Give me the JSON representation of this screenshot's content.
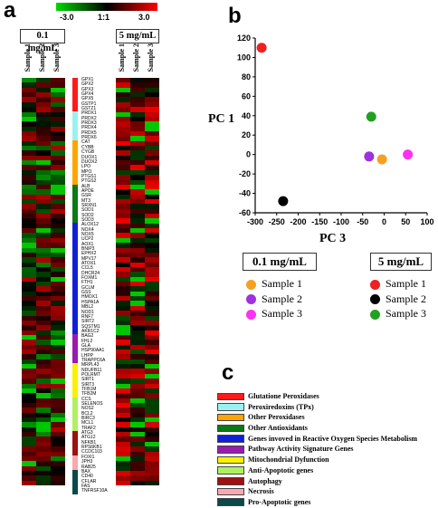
{
  "panel_labels": {
    "a": "a",
    "b": "b",
    "c": "c"
  },
  "color_scale": {
    "min_label": "-3.0",
    "mid_label": "1:1",
    "max_label": "3.0",
    "low_color": "#00d800",
    "mid_color": "#000000",
    "high_color": "#ff0000"
  },
  "heatmap": {
    "left_group": "0.1 mg/mL",
    "right_group": "5 mg/mL",
    "left_samples": [
      "Sample 1",
      "Sample 2",
      "Sample 3"
    ],
    "right_samples": [
      "Sample 1",
      "Sample 2",
      "Sample 3"
    ]
  },
  "genes": [
    {
      "name": "GPX1",
      "cat": 0
    },
    {
      "name": "GPX2",
      "cat": 0
    },
    {
      "name": "GPX3",
      "cat": 0
    },
    {
      "name": "GPX4",
      "cat": 0
    },
    {
      "name": "GPX5",
      "cat": 0
    },
    {
      "name": "GSTP1",
      "cat": 0
    },
    {
      "name": "GSTZ1",
      "cat": 0
    },
    {
      "name": "PRDX1",
      "cat": 1
    },
    {
      "name": "PRDX2",
      "cat": 1
    },
    {
      "name": "PRDX3",
      "cat": 1
    },
    {
      "name": "PRDX4",
      "cat": 1
    },
    {
      "name": "PRDX5",
      "cat": 1
    },
    {
      "name": "PRDX6",
      "cat": 1
    },
    {
      "name": "CAT",
      "cat": 2
    },
    {
      "name": "CYBB",
      "cat": 2
    },
    {
      "name": "CYGB",
      "cat": 2
    },
    {
      "name": "DUOX1",
      "cat": 2
    },
    {
      "name": "DUOX2",
      "cat": 2
    },
    {
      "name": "LPO",
      "cat": 2
    },
    {
      "name": "MPO",
      "cat": 2
    },
    {
      "name": "PTGS1",
      "cat": 2
    },
    {
      "name": "PTGS2",
      "cat": 2
    },
    {
      "name": "ALB",
      "cat": 3
    },
    {
      "name": "APOE",
      "cat": 3
    },
    {
      "name": "GSR",
      "cat": 3
    },
    {
      "name": "MT3",
      "cat": 3
    },
    {
      "name": "SRXN1",
      "cat": 3
    },
    {
      "name": "SOD1",
      "cat": 3
    },
    {
      "name": "SOD2",
      "cat": 3
    },
    {
      "name": "SOD3",
      "cat": 3
    },
    {
      "name": "ALOX12",
      "cat": 4
    },
    {
      "name": "NOX4",
      "cat": 4
    },
    {
      "name": "NOX5",
      "cat": 4
    },
    {
      "name": "UCP2",
      "cat": 4
    },
    {
      "name": "AOX1",
      "cat": 4
    },
    {
      "name": "BNIP3",
      "cat": 4
    },
    {
      "name": "EPHX2",
      "cat": 4
    },
    {
      "name": "MPV17",
      "cat": 4
    },
    {
      "name": "ATOX1",
      "cat": 4
    },
    {
      "name": "CCL5",
      "cat": 4
    },
    {
      "name": "DHCR24",
      "cat": 4
    },
    {
      "name": "FOXM1",
      "cat": 4
    },
    {
      "name": "FTH1",
      "cat": 4
    },
    {
      "name": "GCLM",
      "cat": 4
    },
    {
      "name": "GSS",
      "cat": 4
    },
    {
      "name": "HMOX1",
      "cat": 4
    },
    {
      "name": "HSPA1A",
      "cat": 4
    },
    {
      "name": "MBL2",
      "cat": 4
    },
    {
      "name": "NOD1",
      "cat": 4
    },
    {
      "name": "RNF7",
      "cat": 4
    },
    {
      "name": "SIRT2",
      "cat": 4
    },
    {
      "name": "SQSTM1",
      "cat": 4
    },
    {
      "name": "AKR1C2",
      "cat": 4
    },
    {
      "name": "BAG2",
      "cat": 5
    },
    {
      "name": "FHL2",
      "cat": 5
    },
    {
      "name": "GLA",
      "cat": 5
    },
    {
      "name": "HSP90AA1",
      "cat": 5
    },
    {
      "name": "LHPP",
      "cat": 5
    },
    {
      "name": "TRAPPC6A",
      "cat": 5
    },
    {
      "name": "MRPL43",
      "cat": 6
    },
    {
      "name": "NDUFB11",
      "cat": 6
    },
    {
      "name": "POLRMT",
      "cat": 6
    },
    {
      "name": "SIRT1",
      "cat": 6
    },
    {
      "name": "SIRT3",
      "cat": 6
    },
    {
      "name": "TFB1M",
      "cat": 6
    },
    {
      "name": "TFB2M",
      "cat": 6
    },
    {
      "name": "CCS",
      "cat": 7
    },
    {
      "name": "SELENOS",
      "cat": 7
    },
    {
      "name": "NOS2",
      "cat": 7
    },
    {
      "name": "BCL2",
      "cat": 7
    },
    {
      "name": "BIRC3",
      "cat": 7
    },
    {
      "name": "MCL1",
      "cat": 7
    },
    {
      "name": "TRAF2",
      "cat": 7
    },
    {
      "name": "ATG3",
      "cat": 8
    },
    {
      "name": "ATG12",
      "cat": 8
    },
    {
      "name": "NFKB1",
      "cat": 8
    },
    {
      "name": "RPS6KB1",
      "cat": 8
    },
    {
      "name": "CCDC103",
      "cat": 8
    },
    {
      "name": "FOXI1",
      "cat": 9
    },
    {
      "name": "JPH3",
      "cat": 9
    },
    {
      "name": "RAB25",
      "cat": 9
    },
    {
      "name": "BAX",
      "cat": 10
    },
    {
      "name": "CD40",
      "cat": 10
    },
    {
      "name": "CFLAR",
      "cat": 10
    },
    {
      "name": "FAS",
      "cat": 10
    },
    {
      "name": "TNFRSF10A",
      "cat": 10
    }
  ],
  "categories": [
    {
      "label": "Glutatione Peroxidases",
      "color": "#ff1a1a"
    },
    {
      "label": "Peroxiredoxins (TPx)",
      "color": "#99f2f0"
    },
    {
      "label": "Other Peroxidases",
      "color": "#ffa500"
    },
    {
      "label": "Other Antioxidants",
      "color": "#0c7a14"
    },
    {
      "label": "Genes invoved in Reactive Oxygen Species Metabolism",
      "color": "#1020d8"
    },
    {
      "label": "Pathway Activity Signature Genes",
      "color": "#9a1ab0"
    },
    {
      "label": "Mitochondrial Dyfunction",
      "color": "#f8f200"
    },
    {
      "label": "Anti-Apoptotic genes",
      "color": "#b0f060"
    },
    {
      "label": "Autophagy",
      "color": "#a01010"
    },
    {
      "label": "Necrosis",
      "color": "#f8a8b0"
    },
    {
      "label": "Pro-Apoptotic genes",
      "color": "#0a4a48"
    }
  ],
  "chart_data": {
    "type": "scatter",
    "xlabel": "PC 3",
    "ylabel": "PC 1",
    "xlim": [
      -300,
      100
    ],
    "ylim": [
      -60,
      120
    ],
    "xticks": [
      -300,
      -250,
      -200,
      -150,
      -100,
      -50,
      0,
      50,
      100
    ],
    "yticks": [
      -60,
      -40,
      -20,
      0,
      20,
      40,
      60,
      80,
      100,
      120
    ],
    "grid": false,
    "series": [
      {
        "name": "Sample 1",
        "group": "0.1 mg/mL",
        "color": "#f5a020",
        "x": -5,
        "y": -5
      },
      {
        "name": "Sample 2",
        "group": "0.1 mg/mL",
        "color": "#a030e0",
        "x": -35,
        "y": -2
      },
      {
        "name": "Sample 3",
        "group": "0.1 mg/mL",
        "color": "#ff30f0",
        "x": 55,
        "y": 0
      },
      {
        "name": "Sample 1",
        "group": "5 mg/mL",
        "color": "#ee2020",
        "x": -285,
        "y": 110
      },
      {
        "name": "Sample 2",
        "group": "5 mg/mL",
        "color": "#000000",
        "x": -235,
        "y": -48
      },
      {
        "name": "Sample 3",
        "group": "5 mg/mL",
        "color": "#22a022",
        "x": -30,
        "y": 39
      }
    ],
    "legend": {
      "left_title": "0.1 mg/mL",
      "right_title": "5 mg/mL",
      "placement": "bottom"
    }
  }
}
